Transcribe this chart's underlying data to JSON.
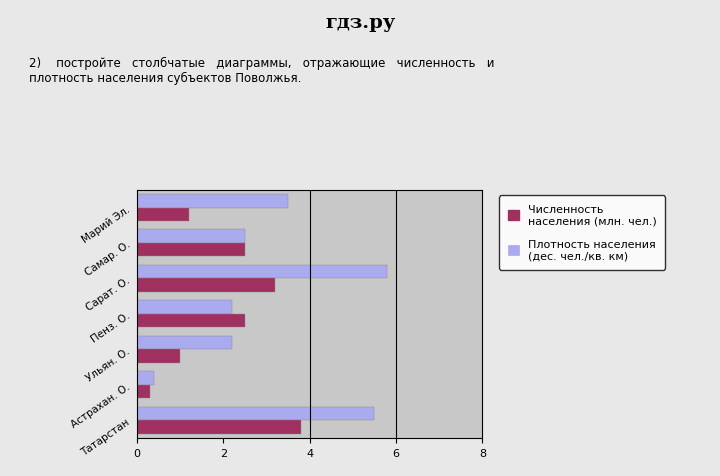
{
  "categories": [
    "Татарстан",
    "Астрахан. О.",
    "Ульян. О.",
    "Пенз. О.",
    "Сарат. О.",
    "Самар. О.",
    "Марий Эл."
  ],
  "population": [
    3.8,
    0.3,
    1.0,
    2.5,
    3.2,
    2.5,
    1.2
  ],
  "density": [
    5.5,
    0.4,
    2.2,
    2.2,
    5.8,
    2.5,
    3.5
  ],
  "pop_color": "#a03060",
  "den_color": "#aaaaee",
  "xlim": [
    0,
    8
  ],
  "xticks": [
    0,
    2,
    4,
    6,
    8
  ],
  "legend_pop": "Численность\nнаселения (млн. чел.)",
  "legend_den": "Плотность населения\n(дес. чел./кв. км)",
  "chart_bg": "#c8c8c8",
  "fig_bg": "#e8e8e8",
  "header_text": "гдз.ру",
  "task_text": "2)    постройте   столбчатые   диаграммы,   отражающие   численность   и\nплотность населения субъектов Поволжья."
}
